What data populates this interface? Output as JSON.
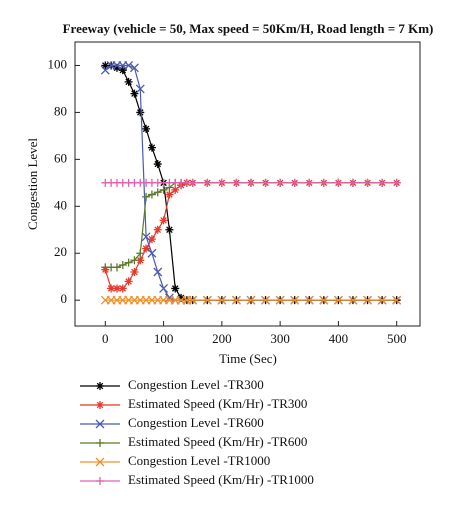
{
  "chart_data": {
    "type": "line",
    "title": "Freeway (vehicle = 50, Max speed = 50Km/H, Road length = 7 Km)",
    "x_label": "Time (Sec)",
    "y_label": "Congestion Level",
    "x": [
      0,
      10,
      20,
      30,
      40,
      50,
      60,
      70,
      80,
      90,
      100,
      110,
      120,
      130,
      140,
      150,
      175,
      200,
      225,
      250,
      275,
      300,
      325,
      350,
      375,
      400,
      425,
      450,
      475,
      500
    ],
    "series": [
      {
        "name": "Congestion Level -TR300",
        "color": "#000000",
        "marker": "star",
        "values": [
          100,
          100,
          99,
          98,
          93,
          88,
          80,
          73,
          65,
          58,
          50,
          30,
          5,
          1,
          0,
          0,
          0,
          0,
          0,
          0,
          0,
          0,
          0,
          0,
          0,
          0,
          0,
          0,
          0,
          0
        ]
      },
      {
        "name": "Estimated Speed (Km/Hr) -TR300",
        "color": "#e8382c",
        "marker": "star",
        "values": [
          13,
          5,
          5,
          5,
          8,
          12,
          17,
          22,
          26,
          30,
          34,
          45,
          47,
          49,
          50,
          50,
          50,
          50,
          50,
          50,
          50,
          50,
          50,
          50,
          50,
          50,
          50,
          50,
          50,
          50
        ]
      },
      {
        "name": "Congestion Level -TR600",
        "color": "#4a5ab0",
        "marker": "x",
        "values": [
          98,
          100,
          100,
          100,
          100,
          99,
          90,
          27,
          20,
          12,
          5,
          1,
          0,
          0,
          0,
          0,
          0,
          0,
          0,
          0,
          0,
          0,
          0,
          0,
          0,
          0,
          0,
          0,
          0,
          0
        ]
      },
      {
        "name": "Estimated Speed (Km/Hr) -TR600",
        "color": "#5a7a2a",
        "marker": "plus",
        "values": [
          14,
          14,
          14,
          15,
          16,
          17,
          20,
          44,
          45,
          46,
          47,
          48,
          50,
          50,
          50,
          50,
          50,
          50,
          50,
          50,
          50,
          50,
          50,
          50,
          50,
          50,
          50,
          50,
          50,
          50
        ]
      },
      {
        "name": "Congestion Level -TR1000",
        "color": "#f0902a",
        "marker": "x",
        "values": [
          0,
          0,
          0,
          0,
          0,
          0,
          0,
          0,
          0,
          0,
          0,
          0,
          0,
          0,
          0,
          0,
          0,
          0,
          0,
          0,
          0,
          0,
          0,
          0,
          0,
          0,
          0,
          0,
          0,
          0
        ]
      },
      {
        "name": "Estimated Speed (Km/Hr) -TR1000",
        "color": "#e060b0",
        "marker": "plus",
        "values": [
          50,
          50,
          50,
          50,
          50,
          50,
          50,
          50,
          50,
          50,
          50,
          50,
          50,
          50,
          50,
          50,
          50,
          50,
          50,
          50,
          50,
          50,
          50,
          50,
          50,
          50,
          50,
          50,
          50,
          50
        ]
      }
    ],
    "xlim": [
      -52,
      540
    ],
    "ylim": [
      -11,
      110
    ],
    "xticks": [
      0,
      100,
      200,
      300,
      400,
      500
    ],
    "yticks": [
      0,
      20,
      40,
      60,
      80,
      100
    ]
  }
}
